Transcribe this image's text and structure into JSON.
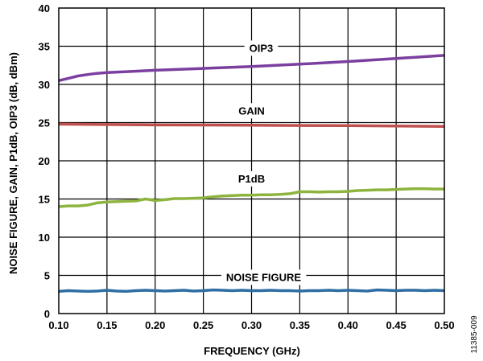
{
  "chart_data": {
    "type": "line",
    "xlabel": "FREQUENCY (GHz)",
    "ylabel": "NOISE FIGURE, GAIN, P1dB, OIP3 (dB, dBm)",
    "xlim": [
      0.1,
      0.5
    ],
    "ylim": [
      0,
      40
    ],
    "x_ticks": [
      "0.10",
      "0.15",
      "0.20",
      "0.25",
      "0.30",
      "0.35",
      "0.40",
      "0.45",
      "0.50"
    ],
    "y_ticks": [
      "0",
      "5",
      "10",
      "15",
      "20",
      "25",
      "30",
      "35",
      "40"
    ],
    "grid": true,
    "figure_id": "11385-009",
    "series": [
      {
        "name": "OIP3",
        "color": "#7b3fa0",
        "label_x": 0.31,
        "label_y": 34.8,
        "x": [
          0.1,
          0.11,
          0.12,
          0.13,
          0.14,
          0.15,
          0.175,
          0.2,
          0.25,
          0.3,
          0.35,
          0.4,
          0.45,
          0.5
        ],
        "y": [
          30.5,
          30.8,
          31.1,
          31.3,
          31.45,
          31.55,
          31.7,
          31.85,
          32.1,
          32.35,
          32.65,
          33.0,
          33.4,
          33.8
        ]
      },
      {
        "name": "GAIN",
        "color": "#c0504d",
        "label_x": 0.3,
        "label_y": 26.6,
        "x": [
          0.1,
          0.15,
          0.2,
          0.25,
          0.3,
          0.35,
          0.4,
          0.45,
          0.5
        ],
        "y": [
          24.8,
          24.75,
          24.7,
          24.68,
          24.65,
          24.62,
          24.6,
          24.55,
          24.5
        ]
      },
      {
        "name": "P1dB",
        "color": "#8db43e",
        "label_x": 0.3,
        "label_y": 17.7,
        "x": [
          0.1,
          0.11,
          0.12,
          0.13,
          0.14,
          0.15,
          0.16,
          0.17,
          0.18,
          0.19,
          0.2,
          0.21,
          0.22,
          0.23,
          0.24,
          0.25,
          0.26,
          0.27,
          0.28,
          0.29,
          0.3,
          0.31,
          0.32,
          0.33,
          0.34,
          0.35,
          0.36,
          0.37,
          0.38,
          0.39,
          0.4,
          0.41,
          0.42,
          0.43,
          0.44,
          0.45,
          0.46,
          0.47,
          0.48,
          0.49,
          0.5
        ],
        "y": [
          14.0,
          14.1,
          14.1,
          14.2,
          14.5,
          14.6,
          14.65,
          14.7,
          14.75,
          15.0,
          14.8,
          14.9,
          15.05,
          15.05,
          15.1,
          15.15,
          15.3,
          15.4,
          15.45,
          15.5,
          15.5,
          15.55,
          15.55,
          15.6,
          15.7,
          15.95,
          15.95,
          15.9,
          15.95,
          15.95,
          16.0,
          16.1,
          16.15,
          16.2,
          16.2,
          16.25,
          16.3,
          16.35,
          16.35,
          16.3,
          16.3
        ]
      },
      {
        "name": "NOISE FIGURE",
        "color": "#2e6da4",
        "label_x": 0.3125,
        "label_y": 4.8,
        "x": [
          0.1,
          0.11,
          0.12,
          0.13,
          0.14,
          0.15,
          0.16,
          0.17,
          0.18,
          0.19,
          0.2,
          0.21,
          0.22,
          0.23,
          0.24,
          0.25,
          0.26,
          0.27,
          0.28,
          0.29,
          0.3,
          0.31,
          0.32,
          0.33,
          0.34,
          0.35,
          0.36,
          0.37,
          0.38,
          0.39,
          0.4,
          0.41,
          0.42,
          0.43,
          0.44,
          0.45,
          0.46,
          0.47,
          0.48,
          0.49,
          0.5
        ],
        "y": [
          2.9,
          3.0,
          2.95,
          2.9,
          2.95,
          3.05,
          2.95,
          2.9,
          3.0,
          3.05,
          3.0,
          2.95,
          3.0,
          3.05,
          2.95,
          3.0,
          3.1,
          3.05,
          3.0,
          3.05,
          3.0,
          3.0,
          3.05,
          3.0,
          3.0,
          2.95,
          3.0,
          3.0,
          3.05,
          3.0,
          3.05,
          3.0,
          2.95,
          3.1,
          3.05,
          3.0,
          3.05,
          3.05,
          3.0,
          3.05,
          3.0
        ]
      }
    ]
  }
}
